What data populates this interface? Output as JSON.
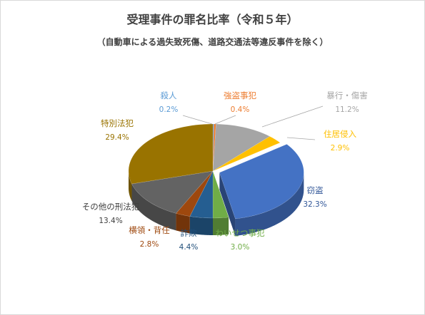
{
  "chart_data": {
    "type": "pie",
    "title": "受理事件の罪名比率（令和５年）",
    "subtitle": "（自動車による過失致死傷、道路交通法等違反事件を除く）",
    "slices": [
      {
        "name": "殺人",
        "value": 0.2,
        "label": "0.2%",
        "color": "#5b9bd5"
      },
      {
        "name": "強盗事犯",
        "value": 0.4,
        "label": "0.4%",
        "color": "#ed7d31"
      },
      {
        "name": "暴行・傷害",
        "value": 11.2,
        "label": "11.2%",
        "color": "#a5a5a5"
      },
      {
        "name": "住居侵入",
        "value": 2.9,
        "label": "2.9%",
        "color": "#ffc000"
      },
      {
        "name": "窃盗",
        "value": 32.3,
        "label": "32.3%",
        "color": "#4472c4"
      },
      {
        "name": "わいせつ事犯",
        "value": 3.0,
        "label": "3.0%",
        "color": "#70ad47"
      },
      {
        "name": "詐欺",
        "value": 4.4,
        "label": "4.4%",
        "color": "#255e91"
      },
      {
        "name": "横領・背任",
        "value": 2.8,
        "label": "2.8%",
        "color": "#9e480e"
      },
      {
        "name": "その他の刑法犯",
        "value": 13.4,
        "label": "13.4%",
        "color": "#636363"
      },
      {
        "name": "特別法犯",
        "value": 29.4,
        "label": "29.4%",
        "color": "#997300"
      }
    ],
    "label_colors": {
      "殺人": "#5b9bd5",
      "強盗事犯": "#ed7d31",
      "暴行・傷害": "#a5a5a5",
      "住居侵入": "#ffc000",
      "窃盗": "#2f5597",
      "わいせつ事犯": "#70ad47",
      "詐欺": "#1f4e79",
      "横領・背任": "#9e480e",
      "その他の刑法犯": "#404040",
      "特別法犯": "#997300"
    },
    "style": "3d-pie"
  }
}
